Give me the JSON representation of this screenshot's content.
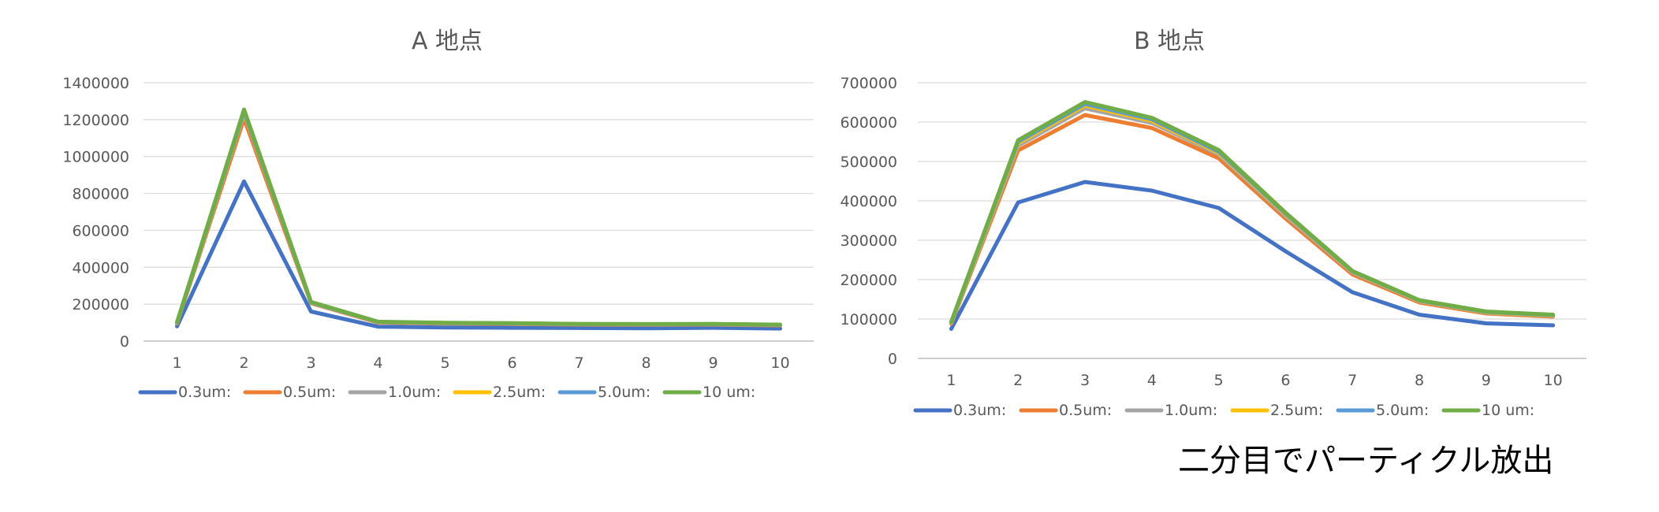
{
  "chart_data": [
    {
      "type": "line",
      "title": "A 地点",
      "categories": [
        "1",
        "2",
        "3",
        "4",
        "5",
        "6",
        "7",
        "8",
        "9",
        "10"
      ],
      "ylim": [
        0,
        1400000
      ],
      "yticks": [
        "0",
        "200000",
        "400000",
        "600000",
        "800000",
        "1000000",
        "1200000",
        "1400000"
      ],
      "grid": true,
      "legend": "bottom",
      "series": [
        {
          "name": "0.3um:",
          "color": "#4472c4",
          "values": [
            80000,
            865000,
            160000,
            78000,
            74000,
            72000,
            71000,
            69000,
            72000,
            68000
          ]
        },
        {
          "name": "0.5um:",
          "color": "#ed7d31",
          "values": [
            95000,
            1205000,
            205000,
            100000,
            95000,
            93000,
            89000,
            88000,
            89000,
            85000
          ]
        },
        {
          "name": "1.0um:",
          "color": "#a5a5a5",
          "values": [
            98000,
            1235000,
            208000,
            102000,
            97000,
            95000,
            91000,
            90000,
            91000,
            87000
          ]
        },
        {
          "name": "2.5um:",
          "color": "#ffc000",
          "values": [
            99000,
            1240000,
            209000,
            103000,
            98000,
            96000,
            92000,
            91000,
            92000,
            88000
          ]
        },
        {
          "name": "5.0um:",
          "color": "#5b9bd5",
          "values": [
            100000,
            1245000,
            210000,
            104000,
            98000,
            96000,
            92000,
            91000,
            92000,
            88000
          ]
        },
        {
          "name": "10 um:",
          "color": "#70ad47",
          "values": [
            102000,
            1255000,
            212000,
            105000,
            99000,
            97000,
            93000,
            92000,
            93000,
            89000
          ]
        }
      ]
    },
    {
      "type": "line",
      "title": "B 地点",
      "categories": [
        "1",
        "2",
        "3",
        "4",
        "5",
        "6",
        "7",
        "8",
        "9",
        "10"
      ],
      "ylim": [
        0,
        700000
      ],
      "yticks": [
        "0",
        "100000",
        "200000",
        "300000",
        "400000",
        "500000",
        "600000",
        "700000"
      ],
      "grid": true,
      "legend": "bottom",
      "series": [
        {
          "name": "0.3um:",
          "color": "#4472c4",
          "values": [
            75000,
            396000,
            448000,
            426000,
            382000,
            272000,
            168000,
            111000,
            89000,
            84000
          ]
        },
        {
          "name": "0.5um:",
          "color": "#ed7d31",
          "values": [
            88000,
            528000,
            618000,
            585000,
            508000,
            355000,
            213000,
            142000,
            114000,
            106000
          ]
        },
        {
          "name": "1.0um:",
          "color": "#a5a5a5",
          "values": [
            90000,
            540000,
            635000,
            598000,
            518000,
            362000,
            218000,
            145000,
            116000,
            108000
          ]
        },
        {
          "name": "2.5um:",
          "color": "#ffc000",
          "values": [
            91000,
            546000,
            642000,
            603000,
            522000,
            366000,
            220000,
            146000,
            117000,
            109000
          ]
        },
        {
          "name": "5.0um:",
          "color": "#5b9bd5",
          "values": [
            92000,
            550000,
            646000,
            607000,
            525000,
            368000,
            221000,
            147000,
            118000,
            110000
          ]
        },
        {
          "name": "10 um:",
          "color": "#70ad47",
          "values": [
            93000,
            554000,
            651000,
            611000,
            529000,
            370000,
            222000,
            148000,
            119000,
            111000
          ]
        }
      ]
    }
  ],
  "note": "二分目でパーティクル放出"
}
